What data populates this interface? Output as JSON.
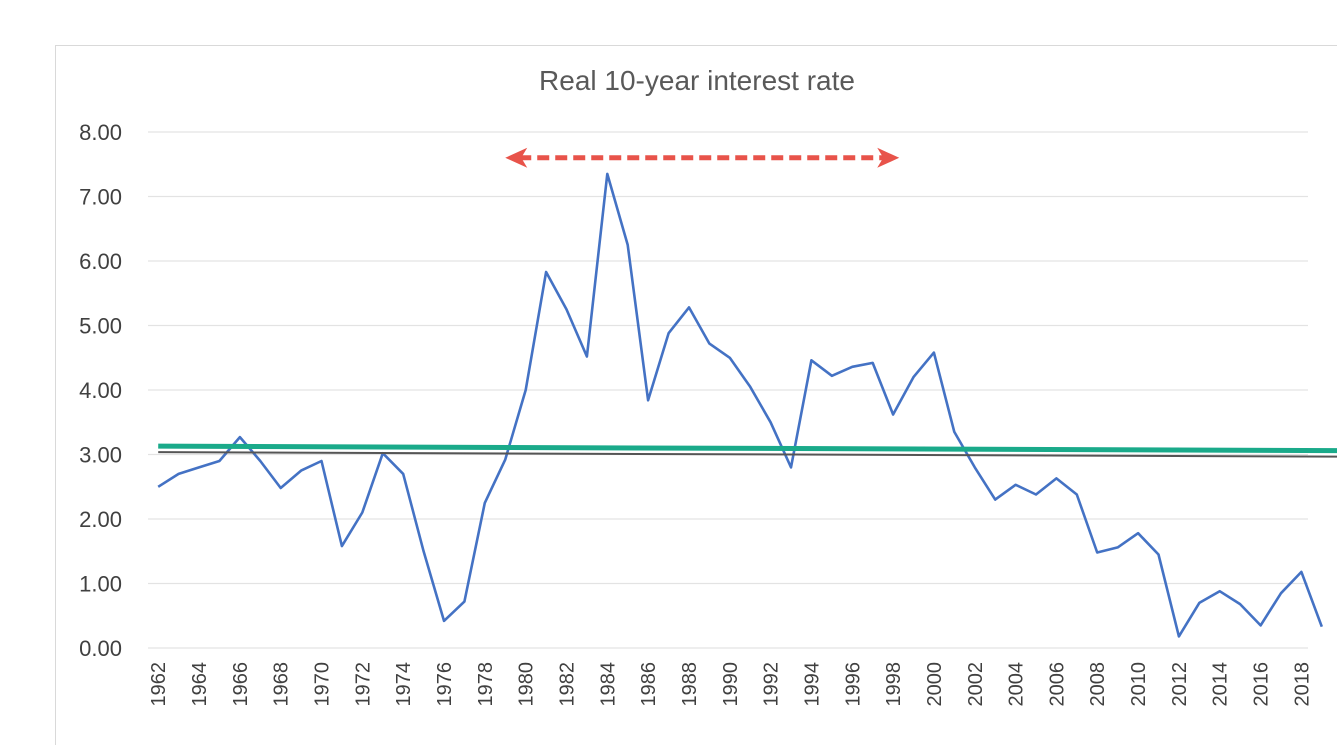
{
  "chart_data": {
    "type": "line",
    "title": "Real 10-year interest rate",
    "xlabel": "",
    "ylabel": "",
    "ylim": [
      0,
      8
    ],
    "yticks": [
      "0.00",
      "1.00",
      "2.00",
      "3.00",
      "4.00",
      "5.00",
      "6.00",
      "7.00",
      "8.00"
    ],
    "grid": true,
    "legend": "none",
    "x": [
      1962,
      1963,
      1964,
      1965,
      1966,
      1967,
      1968,
      1969,
      1970,
      1971,
      1972,
      1973,
      1974,
      1975,
      1976,
      1977,
      1978,
      1979,
      1980,
      1981,
      1982,
      1983,
      1984,
      1985,
      1986,
      1987,
      1988,
      1989,
      1990,
      1991,
      1992,
      1993,
      1994,
      1995,
      1996,
      1997,
      1998,
      1999,
      2000,
      2001,
      2002,
      2003,
      2004,
      2005,
      2006,
      2007,
      2008,
      2009,
      2010,
      2011,
      2012,
      2013,
      2014,
      2015,
      2016,
      2017,
      2018,
      2019
    ],
    "xtick_labels": [
      "1962",
      "1964",
      "1966",
      "1968",
      "1970",
      "1972",
      "1974",
      "1976",
      "1978",
      "1980",
      "1982",
      "1984",
      "1986",
      "1988",
      "1990",
      "1992",
      "1994",
      "1996",
      "1998",
      "2000",
      "2002",
      "2004",
      "2006",
      "2008",
      "2010",
      "2012",
      "2014",
      "2016",
      "2018"
    ],
    "series": [
      {
        "color": "#4472c4",
        "values": [
          2.5,
          2.7,
          2.8,
          2.9,
          3.27,
          2.9,
          2.48,
          2.75,
          2.9,
          1.58,
          2.1,
          3.02,
          2.7,
          1.5,
          0.42,
          0.72,
          2.25,
          2.92,
          4.0,
          5.83,
          5.25,
          4.52,
          7.35,
          6.25,
          3.84,
          4.88,
          5.28,
          4.72,
          4.5,
          4.05,
          3.5,
          2.8,
          4.46,
          4.22,
          4.36,
          4.42,
          3.62,
          4.2,
          4.58,
          3.35,
          2.8,
          2.3,
          2.53,
          2.38,
          2.63,
          2.38,
          1.48,
          1.56,
          1.78,
          1.45,
          0.18,
          0.7,
          0.88,
          0.68,
          0.35,
          0.85,
          1.18,
          0.33
        ]
      }
    ],
    "annotations": [
      {
        "kind": "horizontal-line",
        "color": "#1aaa8a",
        "y_start": 3.13,
        "y_end": 3.06,
        "x_start": 1962,
        "x_end": 2019.8
      },
      {
        "kind": "double-arrow-dashed",
        "color": "#e8534a",
        "x_start": 1979,
        "x_end": 1998.3,
        "y": 7.6
      }
    ]
  }
}
